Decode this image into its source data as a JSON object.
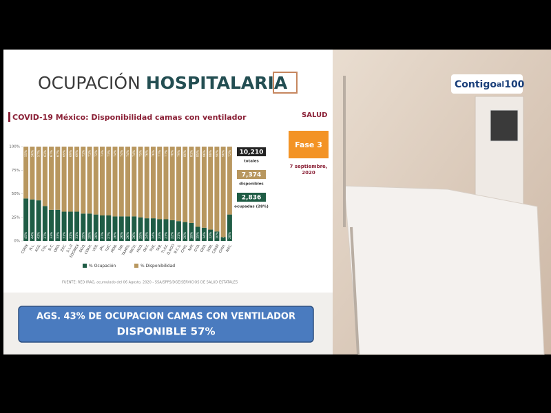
{
  "header": {
    "title_light": "OCUPACIÓN",
    "title_bold": "HOSPITALARIA"
  },
  "logo": "SALUD",
  "phase": "Fase 3",
  "date_line1": "7 septiembre,",
  "date_line2": "2020",
  "stats": [
    {
      "value": "10,210",
      "label": "totales"
    },
    {
      "value": "7,374",
      "label": "disponibles"
    },
    {
      "value": "2,836",
      "label": "ocupadas (28%)"
    }
  ],
  "chart_data": {
    "type": "bar",
    "stacked": true,
    "title": "COVID-19 México: Disponibilidad camas con ventilador",
    "categories": [
      "CDMX",
      "N.L.",
      "AGS.",
      "COL.",
      "B.C.",
      "QRO.",
      "ZAC.",
      "S.L.P.",
      "EDOMEX",
      "DGO.",
      "COAH.",
      "VER.",
      "JAL.",
      "YUC.",
      "MOR.",
      "SIN.",
      "TAMPS.",
      "MICH.",
      "HGO.",
      "OAX.",
      "PUE.",
      "TAB.",
      "TLAX.",
      "Q.ROO",
      "B.C.S.",
      "CHIS.",
      "NAY.",
      "GTO.",
      "GRO.",
      "SON.",
      "CAMP.",
      "CHIH.",
      "NAC."
    ],
    "series": [
      {
        "name": "% Ocupación",
        "color": "#1f5c45",
        "values": [
          45,
          44,
          43,
          37,
          33,
          33,
          31,
          31,
          31,
          29,
          29,
          28,
          27,
          27,
          26,
          26,
          26,
          26,
          25,
          24,
          24,
          23,
          23,
          22,
          21,
          20,
          19,
          15,
          14,
          12,
          10,
          4,
          28
        ],
        "value_labels": [
          "45%",
          "44%",
          "43%",
          "37%",
          "33%",
          "33%",
          "31%",
          "31%",
          "31%",
          "29%",
          "29%",
          "28%",
          "27%",
          "27%",
          "26%",
          "26%",
          "26%",
          "26%",
          "25%",
          "24%",
          "24%",
          "23%",
          "23%",
          "22%",
          "21%",
          "20%",
          "19%",
          "15%",
          "14%",
          "12%",
          "10%",
          "4%",
          "28%"
        ]
      },
      {
        "name": "% Disponibilidad",
        "color": "#b8975f",
        "values": [
          55,
          56,
          57,
          63,
          67,
          67,
          69,
          69,
          69,
          71,
          71,
          72,
          73,
          73,
          74,
          74,
          74,
          74,
          75,
          76,
          76,
          77,
          77,
          78,
          79,
          80,
          81,
          85,
          86,
          88,
          90,
          96,
          72
        ],
        "value_labels": [
          "55%",
          "56%",
          "57%",
          "63%",
          "67%",
          "67%",
          "69%",
          "69%",
          "69%",
          "71%",
          "71%",
          "72%",
          "73%",
          "73%",
          "74%",
          "74%",
          "74%",
          "74%",
          "75%",
          "76%",
          "76%",
          "77%",
          "77%",
          "78%",
          "79%",
          "80%",
          "81%",
          "85%",
          "86%",
          "88%",
          "90%",
          "96%",
          "72%"
        ]
      }
    ],
    "ylim": [
      0,
      100
    ],
    "yticks": [
      {
        "value": 0,
        "label": "0%"
      },
      {
        "value": 25,
        "label": "25%"
      },
      {
        "value": 50,
        "label": "50%"
      },
      {
        "value": 75,
        "label": "75%"
      },
      {
        "value": 100,
        "label": "100%"
      }
    ],
    "source": "FUENTE: RED IRAG, acumulado del 06 Agosto, 2020 - SSA/SPPS/DGE/SERVICIOS DE SALUD ESTATALES"
  },
  "banner": {
    "line1": "AGS. 43% DE OCUPACION CAMAS CON VENTILADOR",
    "line2": "DISPONIBLE 57%"
  },
  "brand": {
    "word1": "Contigo",
    "word2": "al",
    "word3": "100"
  }
}
